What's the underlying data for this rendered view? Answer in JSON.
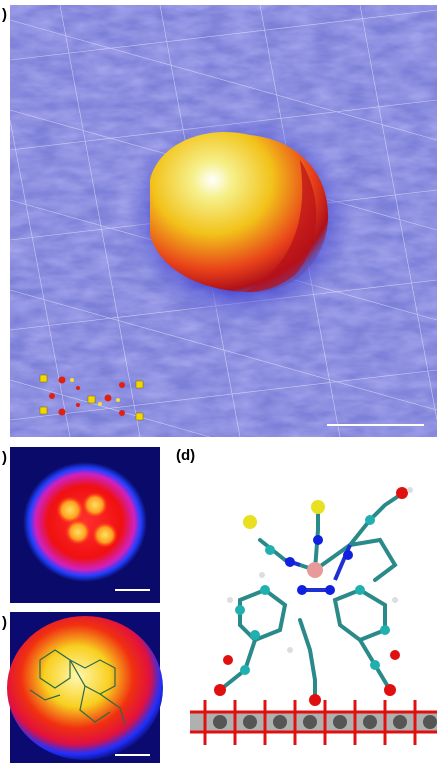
{
  "figure": {
    "panels": [
      {
        "label": ")"
      },
      {
        "label": ")"
      },
      {
        "label": ")"
      },
      {
        "label": "(d)"
      }
    ]
  }
}
